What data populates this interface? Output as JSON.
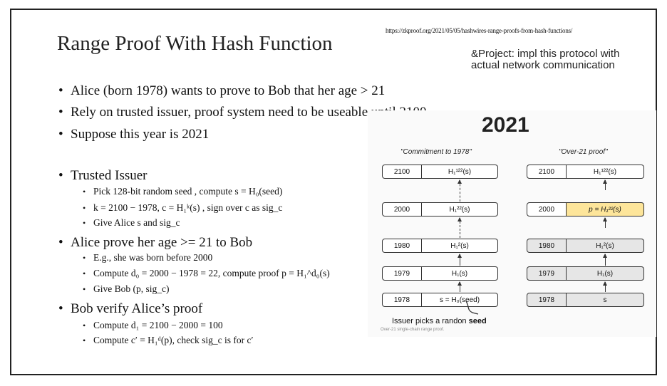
{
  "slide": {
    "title": "Range Proof With Hash Function",
    "url": "https://zkproof.org/2021/05/05/hashwires-range-proofs-from-hash-functions/",
    "project_note": "&Project: impl this protocol with actual network communication"
  },
  "bullets": {
    "alice_wants": "Alice (born 1978) wants to prove to Bob that her age > 21",
    "rely": "Rely on trusted issuer,  proof system need to be useable until 2100",
    "suppose": "Suppose this year is 2021",
    "trusted_issuer": "Trusted Issuer",
    "pick_seed": "Pick 128-bit random seed , compute s = H₀(seed)",
    "compute_k": "k = 2100 − 1978, c = H₁ᵏ(s) , sign over c as sig_c",
    "give_alice": "Give Alice s and sig_c",
    "alice_prove": "Alice prove her age >= 21 to Bob",
    "eg_born": "E.g., she was born before 2000",
    "compute_d0": "Compute d₀ = 2000 − 1978 = 22, compute  proof  p = H₁^d₀(s)",
    "give_bob": "Give Bob (p, sig_c)",
    "bob_verify": "Bob verify Alice’s proof",
    "compute_d1": "Compute d₁ = 2100 − 2000 = 100",
    "compute_cprime": "Compute c′ = H₁ᵈ(p), check sig_c is for c′"
  },
  "figure": {
    "year": "2021",
    "left_title": "\"Commitment to 1978\"",
    "right_title": "\"Over-21 proof\"",
    "left_rows": [
      {
        "year": "2100",
        "value": "H₁¹²²(s)"
      },
      {
        "year": "2000",
        "value": "H₁²²(s)"
      },
      {
        "year": "1980",
        "value": "H₁²(s)"
      },
      {
        "year": "1979",
        "value": "H₁(s)"
      },
      {
        "year": "1978",
        "value": "s = H₀(seed)"
      }
    ],
    "right_rows": [
      {
        "year": "2100",
        "value": "H₁¹²²(s)"
      },
      {
        "year": "2000",
        "value": "p = H₁²²(s)"
      },
      {
        "year": "1980",
        "value": "H₁²(s)"
      },
      {
        "year": "1979",
        "value": "H₁(s)"
      },
      {
        "year": "1978",
        "value": "s"
      }
    ],
    "issuer_text_prefix": "Issuer picks a randon ",
    "issuer_text_bold": "seed",
    "caption": "Over-21 single-chain range proof."
  },
  "colors": {
    "highlight": "#fde59a",
    "gray_cell": "#e6e6e6"
  }
}
